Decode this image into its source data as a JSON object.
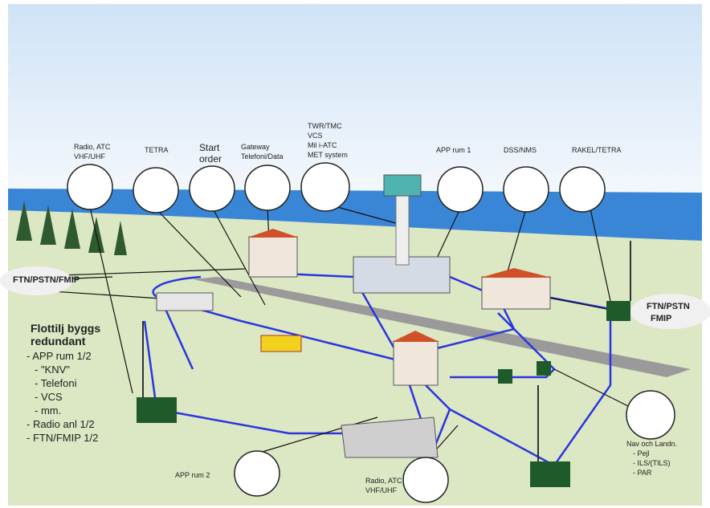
{
  "callouts": [
    {
      "lines": [
        "Radio, ATC",
        "VHF/UHF"
      ]
    },
    {
      "lines": [
        "TETRA"
      ]
    },
    {
      "lines": [
        "Start",
        "order"
      ]
    },
    {
      "lines": [
        "Gateway",
        "Telefoni/Data"
      ]
    },
    {
      "lines": [
        "TWR/TMC",
        "VCS",
        "Mil i-ATC",
        "MET system"
      ]
    },
    {
      "lines": [
        "APP rum 1"
      ]
    },
    {
      "lines": [
        "DSS/NMS"
      ]
    },
    {
      "lines": [
        "RAKEL/TETRA"
      ]
    },
    {
      "lines": [
        "APP rum 2"
      ]
    },
    {
      "lines": [
        "Radio, ATC",
        "VHF/UHF"
      ]
    },
    {
      "lines": [
        "Nav och Landn.",
        "- Pejl",
        "- ILS/(TILS)",
        "- PAR"
      ]
    }
  ],
  "networks": [
    {
      "lines": [
        "FTN/PSTN/FMIP"
      ]
    },
    {
      "lines": [
        "FTN/PSTN",
        "FMIP"
      ]
    }
  ],
  "note": {
    "title": [
      "Flottilj byggs",
      "redundant"
    ],
    "items": [
      "- APP rum 1/2",
      "- \"KNV\"",
      "- Telefoni",
      "- VCS",
      "- mm.",
      "- Radio anl 1/2",
      "- FTN/FMIP 1/2"
    ]
  }
}
